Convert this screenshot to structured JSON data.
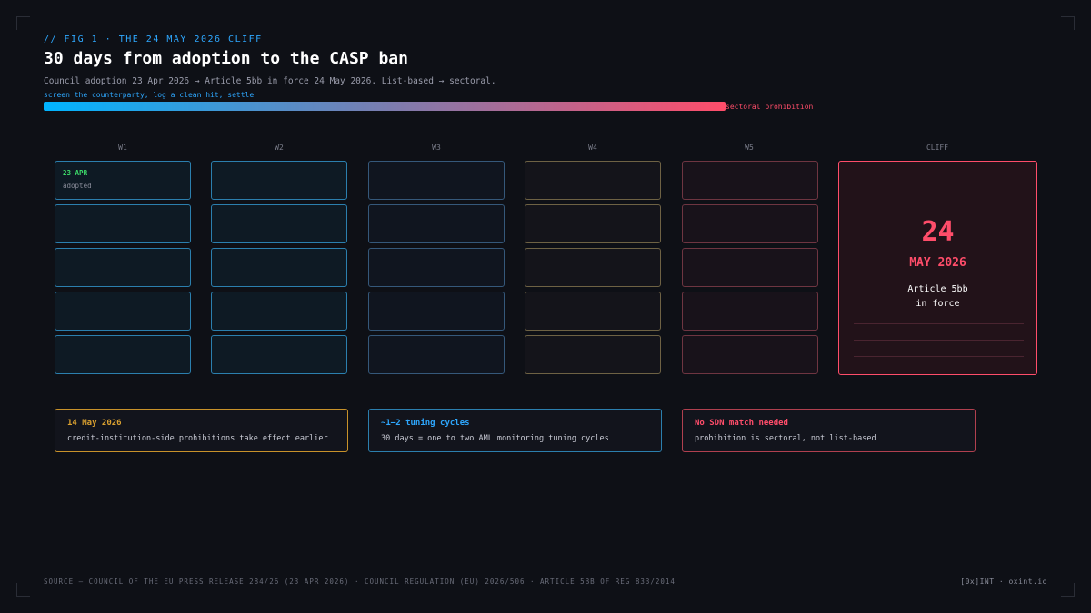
{
  "header": {
    "kicker": "// FIG 1 · THE 24 MAY 2026 CLIFF",
    "title": "30 days from adoption to the CASP ban",
    "subtitle": "Council adoption 23 Apr 2026 → Article 5bb in force 24 May 2026. List-based → sectoral."
  },
  "timeline": {
    "start_label": "screen the counterparty, log a clean hit, settle",
    "end_label": "sectoral prohibition"
  },
  "columns": [
    "W1",
    "W2",
    "W3",
    "W4",
    "W5",
    "CLIFF"
  ],
  "first_cell": {
    "date": "23 APR",
    "label": "adopted"
  },
  "cliff": {
    "day": "24",
    "month": "MAY 2026",
    "line1": "Article 5bb",
    "line2": "in force"
  },
  "callouts": [
    {
      "title": "14 May 2026",
      "text": "credit-institution-side prohibitions take effect earlier"
    },
    {
      "title": "~1–2 tuning cycles",
      "text": "30 days = one to two AML monitoring tuning cycles"
    },
    {
      "title": "No SDN match needed",
      "text": "prohibition is sectoral, not list-based"
    }
  ],
  "footer": {
    "source": "SOURCE — COUNCIL OF THE EU PRESS RELEASE 284/26 (23 APR 2026) · COUNCIL REGULATION (EU) 2026/506 · ARTICLE 5BB OF REG 833/2014",
    "brand": "[0x]INT · oxint.io"
  }
}
